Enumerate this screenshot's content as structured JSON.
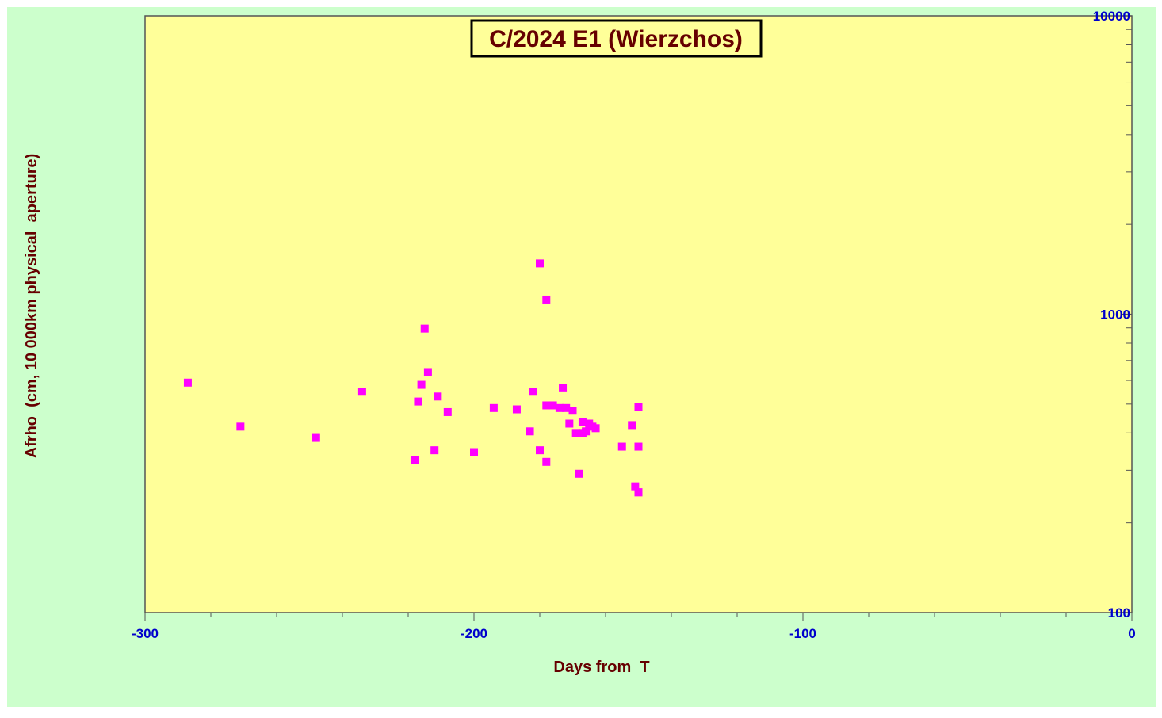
{
  "chart_data": {
    "type": "scatter",
    "title": "C/2024 E1 (Wierzchos)",
    "xlabel": "Days from  T",
    "ylabel": "Afrho  (cm, 10 000km physical  aperture)",
    "x_scale": "linear",
    "y_scale": "log",
    "xlim": [
      -300,
      0
    ],
    "ylim": [
      100,
      10000
    ],
    "x_ticks": [
      -300,
      -200,
      -100,
      0
    ],
    "x_tick_labels": [
      "-300",
      "-200",
      "-100",
      "0"
    ],
    "y_ticks": [
      100,
      1000,
      10000
    ],
    "y_tick_labels": [
      "100",
      "1000",
      "10000"
    ],
    "y_axis_side": "right",
    "grid": false,
    "colors": {
      "outer_background": "#ccffcc",
      "plot_background": "#ffff99",
      "marker": "#ff00ff",
      "tick_label": "#0000cc",
      "axis_label": "#660000",
      "title_text": "#660000",
      "title_box_bg": "#ffff99"
    },
    "series": [
      {
        "marker": "square",
        "x": [
          -287,
          -271,
          -248,
          -234,
          -218,
          -217,
          -216,
          -215,
          -214,
          -212,
          -211,
          -208,
          -200,
          -194,
          -187,
          -183,
          -182,
          -180,
          -180,
          -178,
          -178,
          -178,
          -176,
          -174,
          -173,
          -172,
          -171,
          -170,
          -169,
          -168,
          -167,
          -167,
          -166,
          -165,
          -164,
          -163,
          -155,
          -152,
          -151,
          -150,
          -150,
          -150,
          -150
        ],
        "y": [
          590,
          420,
          385,
          550,
          325,
          510,
          580,
          895,
          640,
          350,
          530,
          470,
          345,
          485,
          480,
          405,
          550,
          350,
          1480,
          320,
          495,
          1120,
          495,
          485,
          565,
          485,
          430,
          475,
          400,
          292,
          435,
          400,
          405,
          430,
          420,
          415,
          360,
          425,
          265,
          490,
          360,
          253,
          253
        ]
      }
    ]
  }
}
